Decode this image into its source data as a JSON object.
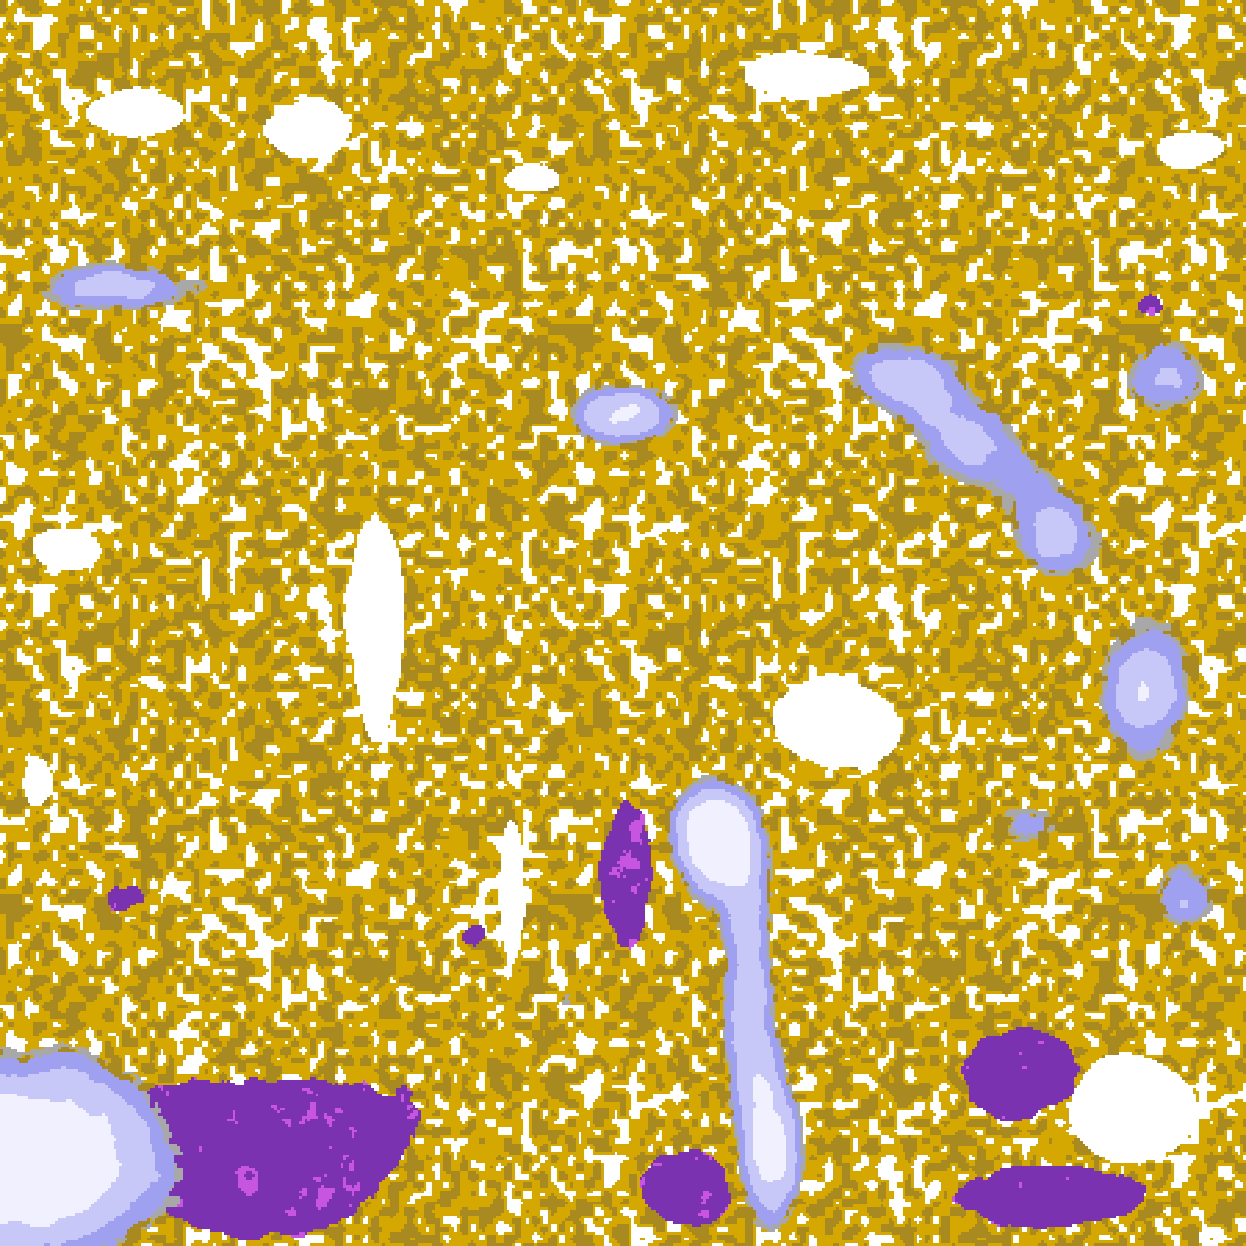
{
  "image": {
    "kind": "classified satellite imagery",
    "colors": {
      "gold": "#d4a800",
      "gold_dark": "#a88a20",
      "purple": "#7b32b0",
      "magenta": "#c855e0",
      "lavender": "#c8c8f8",
      "periwinkle": "#a0a0f0",
      "pale_cloud": "#f0f0ff",
      "gray": "#a8a8a8",
      "background": "#ffffff"
    }
  }
}
